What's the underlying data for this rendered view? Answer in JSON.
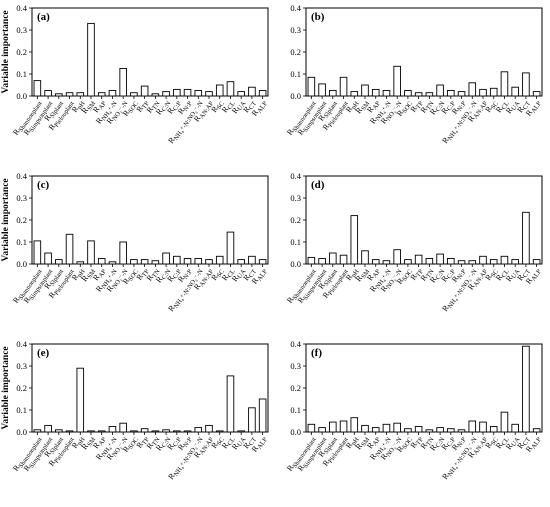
{
  "chart_data": [
    {
      "panel": "(a)",
      "type": "bar",
      "ylabel": "Variable importance",
      "ylim": [
        0,
        0.4
      ],
      "yticks": [
        "0.0",
        "0.1",
        "0.2",
        "0.3",
        "0.4"
      ],
      "categories": [
        "R_Shannonplant",
        "R_Simpsonplant",
        "R_Slplant",
        "R_Pielouplant",
        "R_pH",
        "R_SM",
        "R_AP",
        "R_NH4+-N",
        "R_NO3--N",
        "R_SOC",
        "R_TP",
        "R_TN",
        "R_C:N",
        "R_C:P",
        "R_N:P",
        "R_NH4+-N:NO3--N",
        "R_AN:AP",
        "R_SC",
        "R_CL",
        "R_UA",
        "R_CT",
        "R_ALP"
      ],
      "values": [
        0.07,
        0.025,
        0.01,
        0.015,
        0.015,
        0.33,
        0.015,
        0.025,
        0.125,
        0.015,
        0.045,
        0.01,
        0.02,
        0.03,
        0.03,
        0.025,
        0.02,
        0.05,
        0.065,
        0.02,
        0.04,
        0.025
      ]
    },
    {
      "panel": "(b)",
      "type": "bar",
      "ylabel": "",
      "ylim": [
        0,
        0.4
      ],
      "yticks": [
        "0.0",
        "0.1",
        "0.2",
        "0.3",
        "0.4"
      ],
      "categories": [
        "R_Shannonplant",
        "R_Simpsonplant",
        "R_Slplant",
        "R_Pielouplant",
        "R_pH",
        "R_SM",
        "R_AP",
        "R_NH4+-N",
        "R_NO3--N",
        "R_SOC",
        "R_TP",
        "R_TN",
        "R_C:N",
        "R_C:P",
        "R_N:P",
        "R_NH4+-N:NO3--N",
        "R_AN:AP",
        "R_SC",
        "R_CL",
        "R_UA",
        "R_CT",
        "R_ALP"
      ],
      "values": [
        0.085,
        0.055,
        0.025,
        0.085,
        0.02,
        0.05,
        0.03,
        0.025,
        0.135,
        0.025,
        0.015,
        0.015,
        0.05,
        0.025,
        0.02,
        0.06,
        0.03,
        0.035,
        0.11,
        0.04,
        0.105,
        0.02
      ]
    },
    {
      "panel": "(c)",
      "type": "bar",
      "ylabel": "Variable importance",
      "ylim": [
        0,
        0.4
      ],
      "yticks": [
        "0.0",
        "0.1",
        "0.2",
        "0.3",
        "0.4"
      ],
      "categories": [
        "R_Shannonplant",
        "R_Simpsonplant",
        "R_Slplant",
        "R_Pielouplant",
        "R_pH",
        "R_SM",
        "R_AP",
        "R_NH4+-N",
        "R_NO3--N",
        "R_SOC",
        "R_TP",
        "R_TN",
        "R_C:N",
        "R_C:P",
        "R_N:P",
        "R_NH4+-N:NO3--N",
        "R_AN:AP",
        "R_SC",
        "R_CL",
        "R_UA",
        "R_CT",
        "R_ALP"
      ],
      "values": [
        0.105,
        0.05,
        0.02,
        0.135,
        0.01,
        0.105,
        0.025,
        0.01,
        0.1,
        0.02,
        0.02,
        0.015,
        0.05,
        0.035,
        0.025,
        0.025,
        0.02,
        0.035,
        0.145,
        0.02,
        0.035,
        0.02
      ]
    },
    {
      "panel": "(d)",
      "type": "bar",
      "ylabel": "",
      "ylim": [
        0,
        0.4
      ],
      "yticks": [
        "0.0",
        "0.1",
        "0.2",
        "0.3",
        "0.4"
      ],
      "categories": [
        "R_Shannonplant",
        "R_Simpsonplant",
        "R_Slplant",
        "R_Pielouplant",
        "R_pH",
        "R_SM",
        "R_AP",
        "R_NH4+-N",
        "R_NO3--N",
        "R_SOC",
        "R_TP",
        "R_TN",
        "R_C:N",
        "R_C:P",
        "R_N:P",
        "R_NH4+-N:NO3--N",
        "R_AN:AP",
        "R_SC",
        "R_CL",
        "R_UA",
        "R_CT",
        "R_ALP"
      ],
      "values": [
        0.03,
        0.025,
        0.05,
        0.04,
        0.22,
        0.06,
        0.02,
        0.015,
        0.065,
        0.02,
        0.04,
        0.025,
        0.045,
        0.025,
        0.015,
        0.015,
        0.035,
        0.02,
        0.035,
        0.02,
        0.235,
        0.02
      ]
    },
    {
      "panel": "(e)",
      "type": "bar",
      "ylabel": "Variable importance",
      "ylim": [
        0,
        0.4
      ],
      "yticks": [
        "0.0",
        "0.1",
        "0.2",
        "0.3",
        "0.4"
      ],
      "categories": [
        "R_Shannonplant",
        "R_Simpsonplant",
        "R_Slplant",
        "R_Pielouplant",
        "R_pH",
        "R_SM",
        "R_AP",
        "R_NH4+-N",
        "R_NO3--N",
        "R_SOC",
        "R_TP",
        "R_TN",
        "R_C:N",
        "R_C:P",
        "R_N:P",
        "R_NH4+-N:NO3--N",
        "R_AN:AP",
        "R_SC",
        "R_CL",
        "R_UA",
        "R_CT",
        "R_ALP"
      ],
      "values": [
        0.01,
        0.03,
        0.01,
        0.005,
        0.29,
        0.005,
        0.005,
        0.025,
        0.04,
        0.005,
        0.015,
        0.005,
        0.01,
        0.005,
        0.005,
        0.02,
        0.03,
        0.005,
        0.255,
        0.005,
        0.11,
        0.15
      ]
    },
    {
      "panel": "(f)",
      "type": "bar",
      "ylabel": "",
      "ylim": [
        0,
        0.4
      ],
      "yticks": [
        "0.0",
        "0.1",
        "0.2",
        "0.3",
        "0.4"
      ],
      "categories": [
        "R_Shannonplant",
        "R_Simpsonplant",
        "R_Slplant",
        "R_Pielouplant",
        "R_pH",
        "R_SM",
        "R_AP",
        "R_NH4+-N",
        "R_NO3--N",
        "R_SOC",
        "R_TP",
        "R_TN",
        "R_C:N",
        "R_C:P",
        "R_N:P",
        "R_NH4+-N:NO3--N",
        "R_AN:AP",
        "R_SC",
        "R_CL",
        "R_UA",
        "R_CT",
        "R_ALP"
      ],
      "values": [
        0.035,
        0.02,
        0.045,
        0.05,
        0.065,
        0.03,
        0.02,
        0.035,
        0.04,
        0.015,
        0.025,
        0.01,
        0.02,
        0.015,
        0.01,
        0.05,
        0.045,
        0.025,
        0.09,
        0.035,
        0.39,
        0.015
      ]
    }
  ]
}
